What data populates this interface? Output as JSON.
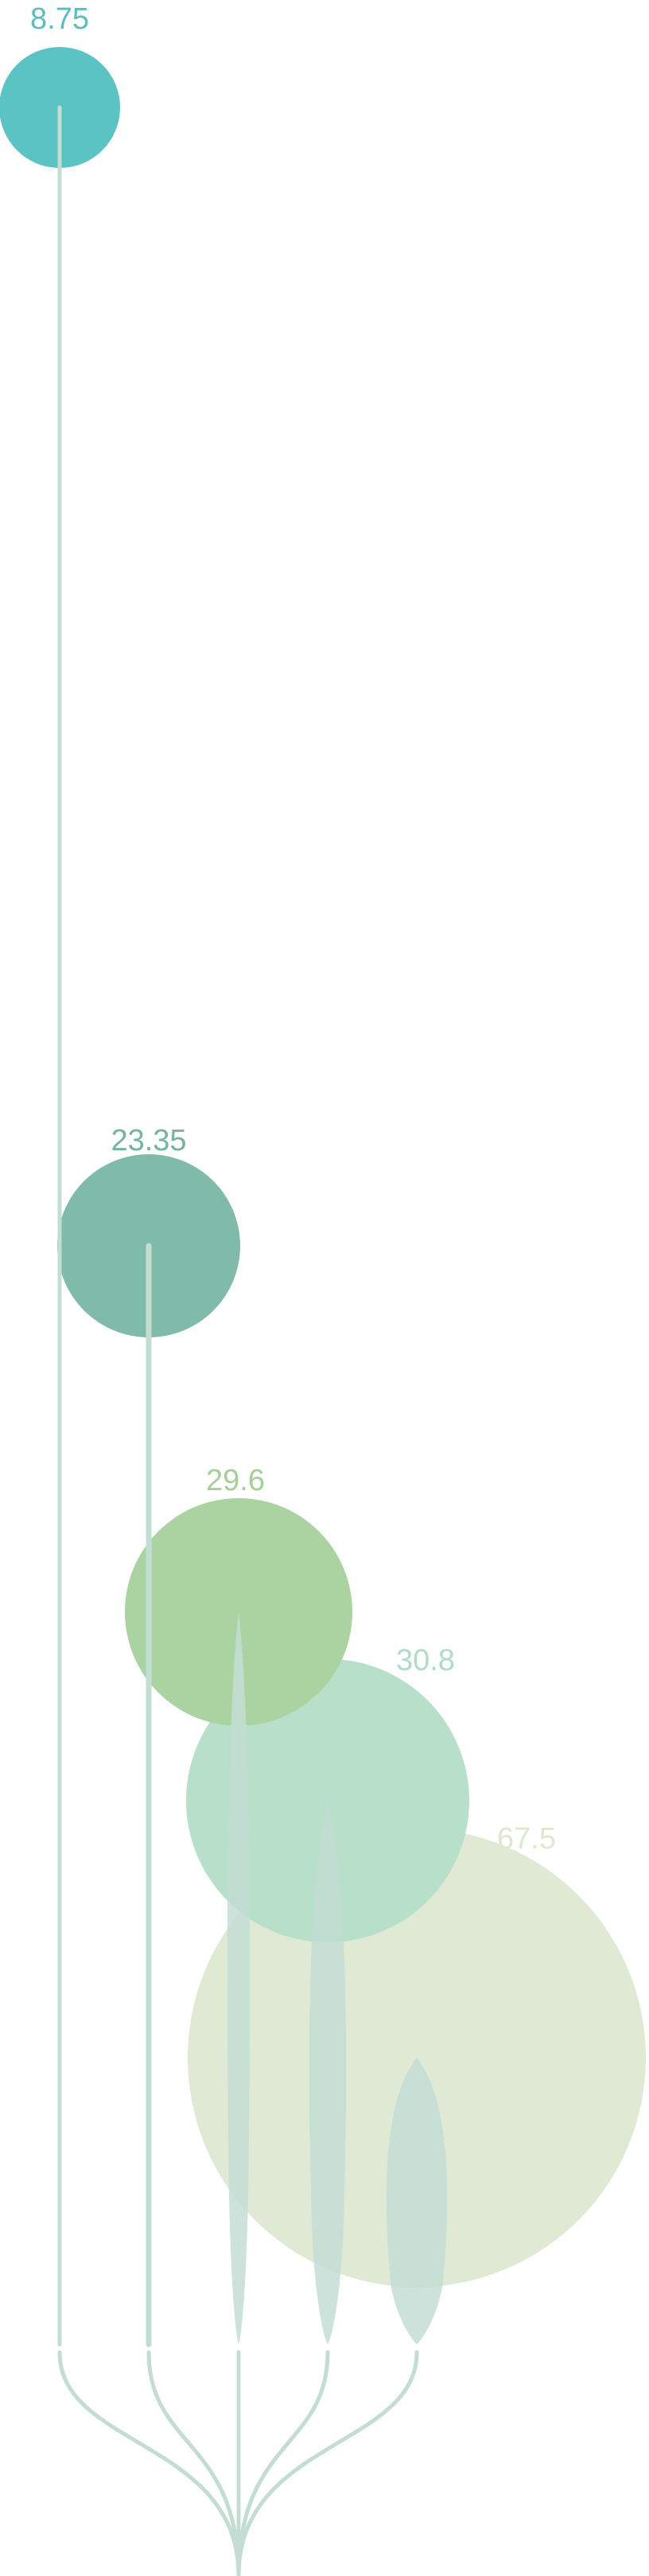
{
  "chart_data": {
    "type": "bubble-stem",
    "series": [
      {
        "label": "8.75",
        "value": 8.75,
        "color": "#5cc3c5",
        "label_color": "#5cbcbf"
      },
      {
        "label": "23.35",
        "value": 23.35,
        "color": "#80baa9",
        "label_color": "#76b3a0"
      },
      {
        "label": "29.6",
        "value": 29.6,
        "color": "#abd3a2",
        "label_color": "#a6cf98"
      },
      {
        "label": "30.8",
        "value": 30.8,
        "color": "#b7dfc9",
        "label_color": "#b0dcc6"
      },
      {
        "label": "67.5",
        "value": 67.5,
        "color": "#dfe9d4",
        "label_color": "#dde8d0"
      }
    ],
    "stem_color": "#c3ddd3",
    "background": "#ffffff"
  }
}
